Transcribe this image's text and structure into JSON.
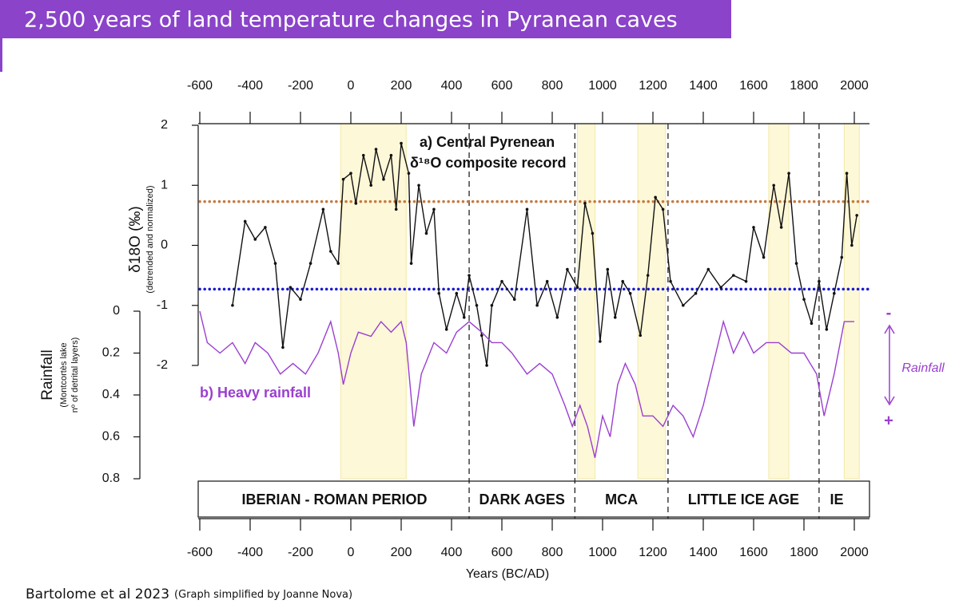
{
  "chart_data": {
    "type": "line",
    "title": "2,500 years of land temperature changes in Pyranean caves",
    "x_label": "Years (BC/AD)",
    "y_label": "δ18O (‰)",
    "y_sublabel": "(detrended and normalized)",
    "y2_label": "Rainfall",
    "y2_sublabel_1": "(Montcortès lake",
    "y2_sublabel_2": "nº of detrital layers)",
    "annotations": {
      "a1": "a) Central Pyrenean",
      "a2": "δ¹⁸O composite record",
      "b": "b) Heavy rainfall",
      "rain": "Rainfall",
      "minus": "-",
      "plus": "+"
    },
    "source": "Bartolome et al 2023",
    "source_note": "(Graph simplified by Joanne Nova)",
    "xlim": [
      -600,
      2000
    ],
    "xticks": [
      -600,
      -400,
      -200,
      0,
      200,
      400,
      600,
      800,
      1000,
      1200,
      1400,
      1600,
      1800,
      2000
    ],
    "ylim": [
      -2,
      2
    ],
    "yticks": [
      2,
      1,
      0,
      -1,
      -2
    ],
    "y2lim": [
      0.8,
      0
    ],
    "y2ticks": [
      0,
      0.2,
      0.4,
      0.6,
      0.8
    ],
    "reference_lines": [
      {
        "value": 0.73,
        "color": "#c8793f"
      },
      {
        "value": -0.73,
        "color": "#1a1ad0"
      }
    ],
    "highlight_bands": [
      [
        -40,
        220
      ],
      [
        900,
        970
      ],
      [
        1140,
        1250
      ],
      [
        1660,
        1740
      ],
      [
        1960,
        2020
      ]
    ],
    "dividers": [
      470,
      890,
      1260,
      1860
    ],
    "periods": [
      "IBERIAN - ROMAN PERIOD",
      "DARK AGES",
      "MCA",
      "LITTLE ICE AGE",
      "IE"
    ],
    "series": [
      {
        "color": "#111111",
        "axis": "y",
        "x": [
          -470,
          -420,
          -380,
          -340,
          -300,
          -270,
          -240,
          -200,
          -160,
          -110,
          -80,
          -50,
          -30,
          0,
          20,
          50,
          80,
          100,
          130,
          160,
          180,
          200,
          230,
          240,
          270,
          300,
          330,
          350,
          380,
          420,
          450,
          470,
          500,
          520,
          540,
          560,
          600,
          650,
          700,
          740,
          780,
          820,
          860,
          900,
          930,
          960,
          990,
          1020,
          1050,
          1080,
          1110,
          1150,
          1180,
          1210,
          1240,
          1270,
          1320,
          1370,
          1420,
          1470,
          1520,
          1570,
          1600,
          1640,
          1680,
          1710,
          1740,
          1770,
          1800,
          1830,
          1860,
          1890,
          1920,
          1950,
          1970,
          1990,
          2010
        ],
        "values": [
          -1.0,
          0.4,
          0.1,
          0.3,
          -0.3,
          -1.7,
          -0.7,
          -0.9,
          -0.3,
          0.6,
          -0.1,
          -0.3,
          1.1,
          1.2,
          0.7,
          1.5,
          1.0,
          1.6,
          1.1,
          1.5,
          0.6,
          1.7,
          1.2,
          -0.3,
          1.0,
          0.2,
          0.6,
          -0.8,
          -1.4,
          -0.8,
          -1.2,
          -0.5,
          -1.0,
          -1.5,
          -2.0,
          -1.0,
          -0.6,
          -0.9,
          0.6,
          -1.0,
          -0.6,
          -1.2,
          -0.4,
          -0.7,
          0.7,
          0.2,
          -1.6,
          -0.4,
          -1.2,
          -0.6,
          -0.8,
          -1.5,
          -0.5,
          0.8,
          0.6,
          -0.6,
          -1.0,
          -0.8,
          -0.4,
          -0.7,
          -0.5,
          -0.6,
          0.3,
          -0.2,
          1.0,
          0.3,
          1.2,
          -0.3,
          -0.9,
          -1.3,
          -0.6,
          -1.4,
          -0.8,
          -0.2,
          1.2,
          0.0,
          0.5
        ]
      },
      {
        "color": "#9b3fd0",
        "axis": "y2",
        "x": [
          -600,
          -570,
          -520,
          -470,
          -420,
          -380,
          -330,
          -280,
          -230,
          -180,
          -130,
          -80,
          -50,
          -30,
          0,
          30,
          80,
          120,
          160,
          200,
          220,
          250,
          280,
          330,
          380,
          420,
          470,
          520,
          560,
          600,
          640,
          700,
          750,
          800,
          850,
          880,
          910,
          940,
          970,
          1000,
          1030,
          1060,
          1090,
          1130,
          1160,
          1200,
          1240,
          1280,
          1320,
          1360,
          1400,
          1450,
          1480,
          1520,
          1560,
          1600,
          1650,
          1700,
          1750,
          1800,
          1850,
          1880,
          1920,
          1960,
          2000
        ],
        "values": [
          0.0,
          0.15,
          0.2,
          0.15,
          0.25,
          0.15,
          0.2,
          0.3,
          0.25,
          0.3,
          0.2,
          0.05,
          0.2,
          0.35,
          0.2,
          0.1,
          0.12,
          0.05,
          0.1,
          0.05,
          0.15,
          0.55,
          0.3,
          0.15,
          0.2,
          0.1,
          0.05,
          0.1,
          0.15,
          0.15,
          0.2,
          0.3,
          0.25,
          0.3,
          0.45,
          0.55,
          0.45,
          0.55,
          0.7,
          0.5,
          0.6,
          0.35,
          0.25,
          0.35,
          0.5,
          0.5,
          0.55,
          0.45,
          0.5,
          0.6,
          0.45,
          0.2,
          0.05,
          0.2,
          0.1,
          0.2,
          0.15,
          0.15,
          0.2,
          0.2,
          0.3,
          0.5,
          0.3,
          0.05,
          0.05
        ]
      }
    ]
  }
}
